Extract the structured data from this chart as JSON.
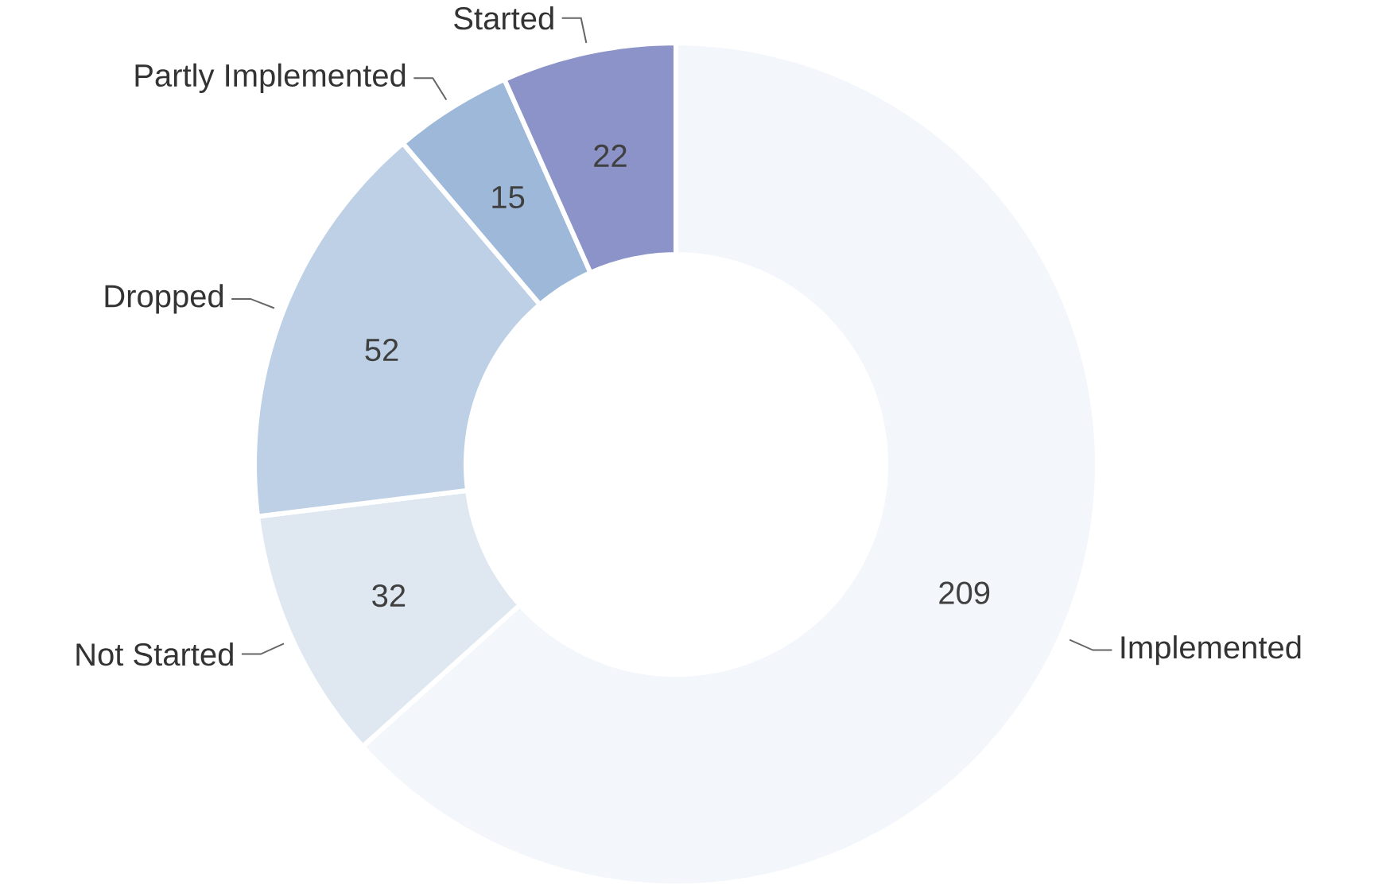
{
  "chart_data": {
    "type": "donut",
    "categories": [
      "Implemented",
      "Not Started",
      "Dropped",
      "Partly Implemented",
      "Started"
    ],
    "values": [
      209,
      32,
      52,
      15,
      22
    ],
    "colors": [
      "#f3f7fb",
      "#dfe8f1",
      "#bdd0e5",
      "#9db8d8",
      "#8c93c8"
    ],
    "data_labels": true
  }
}
